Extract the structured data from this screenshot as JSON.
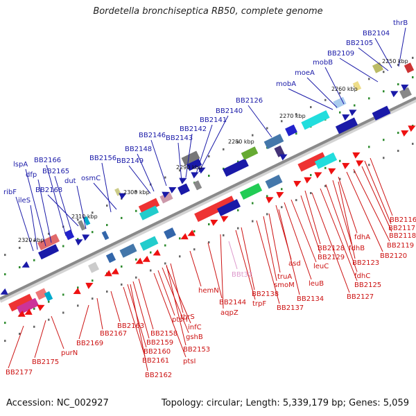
{
  "title": "Bordetella bronchiseptica RB50, complete genome",
  "footer": {
    "accession": "Accession: NC_002927",
    "summary": "Topology: circular; Length: 5,339,179 bp; Genes: 5,059"
  },
  "colors": {
    "backbone": "#8a8a8a",
    "upper_labels": "#1a1aa8",
    "lower_labels": "#cc1111",
    "rna_label": "#dd99cc",
    "gc_dots": "#2e8b2e"
  },
  "scale_ticks": [
    "2250 kbp",
    "2260 kbp",
    "2270 kbp",
    "2280 kbp",
    "2290 kbp",
    "2300 kbp",
    "2310 kbp",
    "2320 kbp"
  ],
  "upper_genes": [
    "thrB",
    "BB2104",
    "BB2105",
    "BB2109",
    "mobB",
    "moeA",
    "mobA",
    "BB2126",
    "BB2140",
    "BB2141",
    "BB2142",
    "BB2143",
    "BB2146",
    "BB2148",
    "BB2149",
    "BB2156",
    "osmC",
    "dut",
    "BB2165",
    "BB2166",
    "dfp",
    "lspA",
    "BB2168",
    "ribF",
    "ileS"
  ],
  "lower_genes": [
    "BB2116",
    "BB2117",
    "BB2118",
    "BB2119",
    "BB2120",
    "fdhA",
    "fdhB",
    "BB2123",
    "BB2128",
    "BB2129",
    "fdhC",
    "BB2125",
    "asd",
    "leuC",
    "leuB",
    "BB2127",
    "truA",
    "smoM",
    "BB2134",
    "BB2137",
    "BB2138",
    "trpF",
    "BB2144",
    "aqpZ",
    "hemN",
    "thrS",
    "infC",
    "gshB",
    "ptsH",
    "BB2153",
    "ptsI",
    "BB2158",
    "BB2159",
    "BB2160",
    "BB2161",
    "BB2162",
    "BB2163",
    "BB2167",
    "BB2169",
    "purN",
    "BB2175",
    "BB2177"
  ],
  "rna_genes": [
    "BBt32"
  ]
}
